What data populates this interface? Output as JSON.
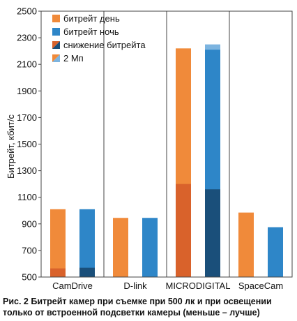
{
  "chart_data": {
    "type": "bar",
    "ylabel": "Битрейт, кбит/с",
    "ylim": [
      500,
      2500
    ],
    "yticks": [
      500,
      700,
      900,
      1100,
      1300,
      1500,
      1700,
      1900,
      2100,
      2300,
      2500
    ],
    "categories": [
      "CamDrive",
      "D-link",
      "MICRODIGITAL",
      "SpaceCam"
    ],
    "series": [
      {
        "name": "битрейт день",
        "values": [
          1010,
          945,
          2220,
          985
        ]
      },
      {
        "name": "битрейт ночь",
        "values": [
          1010,
          945,
          2210,
          875
        ]
      }
    ],
    "overlays": [
      {
        "name": "снижение битрейта",
        "day": [
          565,
          null,
          1200,
          null
        ],
        "night": [
          570,
          null,
          1160,
          null
        ]
      },
      {
        "name": "2 Мп",
        "night_top": [
          null,
          null,
          2250,
          null
        ]
      }
    ],
    "legend": [
      "битрейт день",
      "битрейт ночь",
      "снижение битрейта",
      "2 Мп"
    ],
    "legend_position": "top-left",
    "grid": "vertical category separators",
    "colors": {
      "day": "#F08A3A",
      "day_dark": "#D9622B",
      "night": "#2E86C8",
      "night_dark": "#1A4F7A",
      "two_mp": "#7CB4E0"
    }
  },
  "caption": "Рис. 2 Битрейт камер при съемке при 500 лк и при освещении только от встроенной подсветки камеры (меньше – лучше)"
}
